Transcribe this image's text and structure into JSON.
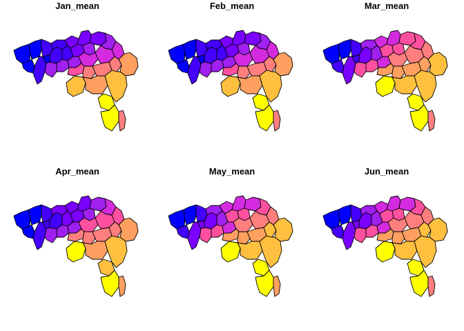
{
  "palette": [
    "#0000FF",
    "#4400FF",
    "#7A00FF",
    "#A020F0",
    "#D42BE0",
    "#FF50A0",
    "#FF7F7F",
    "#FFA060",
    "#FFC040",
    "#FFFF00"
  ],
  "maps": [
    {
      "title": "Jan_mean",
      "classes": [
        0,
        0,
        0,
        1,
        1,
        1,
        0,
        1,
        2,
        2,
        1,
        2,
        3,
        3,
        3,
        3,
        2,
        3,
        4,
        4,
        4,
        5,
        6,
        6,
        6,
        7,
        8,
        7,
        9,
        9,
        8,
        6
      ]
    },
    {
      "title": "Feb_mean",
      "classes": [
        0,
        0,
        0,
        1,
        1,
        1,
        0,
        1,
        2,
        2,
        1,
        2,
        3,
        3,
        3,
        3,
        2,
        3,
        4,
        4,
        4,
        5,
        6,
        6,
        6,
        7,
        8,
        7,
        9,
        9,
        8,
        6
      ]
    },
    {
      "title": "Mar_mean",
      "classes": [
        0,
        0,
        1,
        1,
        2,
        2,
        1,
        3,
        4,
        4,
        3,
        5,
        5,
        5,
        4,
        5,
        5,
        5,
        6,
        6,
        6,
        7,
        7,
        7,
        7,
        8,
        9,
        8,
        9,
        9,
        8,
        6
      ]
    },
    {
      "title": "Apr_mean",
      "classes": [
        0,
        0,
        0,
        1,
        1,
        1,
        1,
        2,
        2,
        2,
        2,
        2,
        3,
        3,
        3,
        3,
        3,
        4,
        5,
        5,
        5,
        6,
        6,
        6,
        6,
        7,
        9,
        7,
        8,
        9,
        8,
        7
      ]
    },
    {
      "title": "May_mean",
      "classes": [
        0,
        0,
        1,
        1,
        2,
        2,
        2,
        3,
        4,
        4,
        3,
        5,
        5,
        5,
        4,
        5,
        4,
        5,
        6,
        6,
        6,
        7,
        7,
        7,
        8,
        8,
        9,
        8,
        9,
        9,
        8,
        7
      ]
    },
    {
      "title": "Jun_mean",
      "classes": [
        0,
        0,
        1,
        1,
        2,
        2,
        2,
        3,
        4,
        4,
        3,
        5,
        5,
        5,
        4,
        5,
        4,
        5,
        6,
        6,
        6,
        7,
        7,
        7,
        8,
        8,
        9,
        8,
        9,
        9,
        8,
        6
      ]
    }
  ]
}
